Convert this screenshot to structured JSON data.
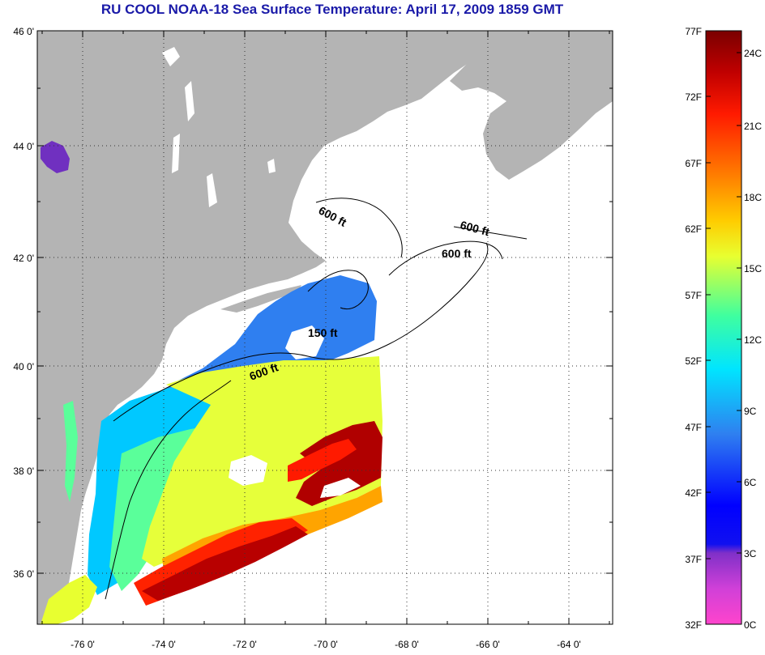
{
  "title": "RU COOL  NOAA-18  Sea Surface Temperature:  April 17, 2009 1859 GMT",
  "latitude_labels": [
    "46 0'",
    "44 0'",
    "42 0'",
    "40 0'",
    "38 0'",
    "36 0'"
  ],
  "longitude_labels": [
    "-76 0'",
    "-74 0'",
    "-72 0'",
    "-70 0'",
    "-68 0'",
    "-66 0'",
    "-64 0'"
  ],
  "contours": [
    {
      "label": "600 ft"
    },
    {
      "label": "600 ft"
    },
    {
      "label": "600 ft"
    },
    {
      "label": "150 ft"
    },
    {
      "label": "600 ft"
    }
  ],
  "colorbar": {
    "fahrenheit_labels": [
      "77F",
      "72F",
      "67F",
      "62F",
      "57F",
      "52F",
      "47F",
      "42F",
      "37F",
      "32F"
    ],
    "celsius_labels": [
      "24C",
      "21C",
      "18C",
      "15C",
      "12C",
      "9C",
      "6C",
      "3C",
      "0C"
    ],
    "colors": [
      "#ff44cc",
      "#9933cc",
      "#0000ff",
      "#2f7ff0",
      "#00e5ff",
      "#3fff9f",
      "#e8ff30",
      "#ffcc00",
      "#ff7a00",
      "#ff1a00",
      "#7a0000"
    ]
  },
  "colors": {
    "land": "#b4b4b4",
    "cloud_mask": "#ffffff",
    "title": "#1a1aa8"
  }
}
